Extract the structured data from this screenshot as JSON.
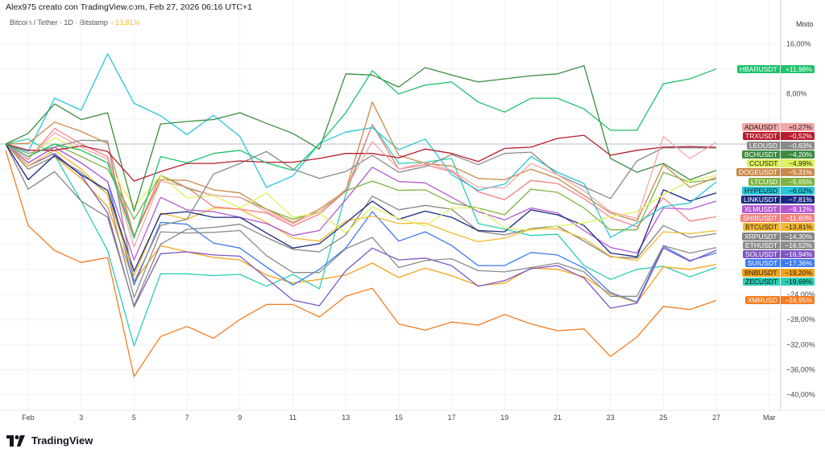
{
  "header": {
    "credit": "Alex975 creato con TradingView.com, Feb 27, 2026 06:16 UTC+1",
    "symbol": "Bitcoin / Tether · 1D · Bitstamp",
    "symbol_change": "−13,81%",
    "scale_mode": "Misto"
  },
  "logo": {
    "text": "TradingView",
    "icon": "tradingview-logo-icon"
  },
  "chart_data": {
    "type": "line",
    "ylabel_unit": "%",
    "ylim": [
      -42,
      19
    ],
    "grid": true,
    "legend": "right-axis-labels",
    "x_tick_labels": [
      "Feb",
      "3",
      "5",
      "7",
      "9",
      "11",
      "13",
      "15",
      "17",
      "19",
      "21",
      "23",
      "25",
      "27",
      "Mar"
    ],
    "y_tick_labels": [
      {
        "value": 16,
        "text": "16,00%"
      },
      {
        "value": 8,
        "text": "8,00%"
      },
      {
        "value": -24,
        "text": "−24,00%"
      },
      {
        "value": -28,
        "text": "−28,00%"
      },
      {
        "value": -32,
        "text": "−32,00%"
      },
      {
        "value": -36,
        "text": "−36,00%"
      },
      {
        "value": -40,
        "text": "−40,00%"
      }
    ],
    "dates": [
      "2026-01-31",
      "2026-02-01",
      "2026-02-02",
      "2026-02-03",
      "2026-02-04",
      "2026-02-05",
      "2026-02-06",
      "2026-02-07",
      "2026-02-08",
      "2026-02-09",
      "2026-02-10",
      "2026-02-11",
      "2026-02-12",
      "2026-02-13",
      "2026-02-14",
      "2026-02-15",
      "2026-02-16",
      "2026-02-17",
      "2026-02-18",
      "2026-02-19",
      "2026-02-20",
      "2026-02-21",
      "2026-02-22",
      "2026-02-23",
      "2026-02-24",
      "2026-02-25",
      "2026-02-26",
      "2026-02-27"
    ],
    "series": [
      {
        "name": "HBARUSDT",
        "last": "+11,98%",
        "color": "#1fc26b",
        "text": "#fff",
        "values": [
          0,
          -2,
          0,
          -1,
          -3,
          -15,
          -2,
          -3,
          -1.5,
          -1,
          -3,
          -4.2,
          0,
          5,
          11.7,
          8,
          9.4,
          9.9,
          6.7,
          5.1,
          7.3,
          7.3,
          5.6,
          2.2,
          2.2,
          9.6,
          10.4,
          11.98
        ]
      },
      {
        "name": "ADAUSDT",
        "last": "+0,27%",
        "color": "#f4a7a7",
        "text": "#222",
        "values": [
          0,
          -2.4,
          1.8,
          -0.5,
          -2.4,
          -16.4,
          -5.9,
          -6.9,
          -8.2,
          -8.5,
          -10.8,
          -12.7,
          -10.8,
          -7.2,
          0.4,
          -4,
          -2.9,
          -4.2,
          -6.9,
          -7,
          -3.1,
          -4.9,
          -7.5,
          -10.8,
          -11.9,
          1.2,
          -2.3,
          0.27
        ]
      },
      {
        "name": "TRXUSDT",
        "last": "−0,52%",
        "color": "#b71c2c",
        "text": "#fff",
        "values": [
          0,
          -1,
          -1,
          -0.3,
          -1.2,
          -5.9,
          -4.4,
          -3.1,
          -3.1,
          -2.7,
          -2.9,
          -2.9,
          -2.3,
          -1.5,
          -1.5,
          -2.2,
          -0.8,
          -1.5,
          -2.8,
          -0.7,
          -0.5,
          0.9,
          1.4,
          -1.8,
          -1,
          -0.5,
          -0.4,
          -0.52
        ]
      },
      {
        "name": "LEOUSD",
        "last": "−0,63%",
        "color": "#8a8a8a",
        "text": "#fff",
        "values": [
          0,
          -1.5,
          -0.5,
          0.6,
          0.5,
          -22,
          -13,
          -12,
          -4.8,
          -3.1,
          -1.2,
          -4,
          -5.5,
          -4.4,
          -1.8,
          -4.5,
          -3.6,
          -1.7,
          -3.3,
          -1.5,
          -1.3,
          -4.9,
          -6.8,
          -8.7,
          -2.7,
          -0.6,
          -0.6,
          -0.63
        ]
      },
      {
        "name": "BCHUSDT",
        "last": "−4,20%",
        "color": "#3d8b40",
        "text": "#fff",
        "values": [
          0,
          1.7,
          6.4,
          3.9,
          5,
          -10.7,
          3.2,
          3.6,
          3.9,
          5,
          3.3,
          1.7,
          -0.8,
          11.2,
          11,
          9.1,
          12.2,
          11,
          9.9,
          10.4,
          10.9,
          11.2,
          12.5,
          -2.3,
          -4.5,
          -3.1,
          -5.7,
          -4.2
        ]
      },
      {
        "name": "CCUSDT",
        "last": "−4,99%",
        "color": "#dff25a",
        "text": "#222",
        "values": [
          0,
          -2,
          1,
          -1,
          -3,
          -10,
          -5,
          -8.6,
          -8.2,
          -10.2,
          -7.8,
          -11.7,
          -11,
          -14.2,
          -10,
          -11.9,
          -13.1,
          -10.2,
          -10.2,
          -13.4,
          -13.8,
          -13.1,
          -12.6,
          -11.6,
          -10.8,
          -8.1,
          -5.9,
          -4.99
        ]
      },
      {
        "name": "DOGEUSDT",
        "last": "−5,31%",
        "color": "#c98a4b",
        "text": "#fff",
        "values": [
          0,
          0.1,
          3.5,
          2,
          0.1,
          -14.7,
          -5.7,
          -5.8,
          -7.3,
          -7.8,
          -10.4,
          -12.5,
          -10.4,
          -7.4,
          6.7,
          -1.8,
          -3.1,
          -3.5,
          -5.5,
          -5.7,
          -4,
          -5.5,
          -8.2,
          -11,
          -12.3,
          -3.3,
          -6.9,
          -5.31
        ]
      },
      {
        "name": "LTCUSD",
        "last": "−5,65%",
        "color": "#7cb342",
        "text": "#fff",
        "values": [
          0,
          -2,
          0,
          -2,
          -4,
          -12,
          -5,
          -7.1,
          -8.2,
          -8.5,
          -10.4,
          -12,
          -10.8,
          -7.5,
          -5.9,
          -7.4,
          -7.3,
          -9.4,
          -10.2,
          -11.3,
          -7.2,
          -7.7,
          -10.2,
          -13.7,
          -13.7,
          -4.5,
          -6.1,
          -5.65
        ]
      },
      {
        "name": "HYPEUSD",
        "last": "−6,02%",
        "color": "#26c6da",
        "text": "#111",
        "values": [
          0,
          -1.2,
          7.3,
          5.4,
          14.4,
          6.5,
          4.5,
          1.5,
          4.6,
          1.2,
          -6.9,
          -5.1,
          0.1,
          1.9,
          2.6,
          -0.9,
          0.8,
          -4.9,
          -7.4,
          -6.4,
          -2,
          -4.5,
          -6.3,
          -14.9,
          -12.6,
          -10,
          -9.4,
          -6.02
        ]
      },
      {
        "name": "LINKUSDT",
        "last": "−7,81%",
        "color": "#1a2a80",
        "text": "#fff",
        "values": [
          0,
          -5.7,
          -1.8,
          -4.9,
          -7.4,
          -20.3,
          -11.2,
          -10.8,
          -11.7,
          -11.7,
          -14.2,
          -16.6,
          -15.9,
          -12.6,
          -9.1,
          -12,
          -10.7,
          -11.7,
          -13.8,
          -14,
          -10.5,
          -11.3,
          -13,
          -17.4,
          -18,
          -7.3,
          -9.1,
          -7.81
        ]
      },
      {
        "name": "XLMUSDT",
        "last": "−9,12%",
        "color": "#b45ad0",
        "text": "#fff",
        "values": [
          0,
          -3,
          -0.5,
          -3,
          -6,
          -18.5,
          -8.5,
          -10.5,
          -10.8,
          -11.7,
          -12.7,
          -14.6,
          -13.8,
          -8.9,
          -3.7,
          -6,
          -6.2,
          -8.5,
          -10.8,
          -12.1,
          -10.2,
          -11,
          -13.8,
          -16.5,
          -17.4,
          -10.2,
          -10.4,
          -9.12
        ]
      },
      {
        "name": "SHIBUSDT",
        "last": "−11,60%",
        "color": "#f28080",
        "text": "#fff",
        "values": [
          0,
          -2.5,
          2.5,
          0,
          -2,
          -14.7,
          -5,
          -6.9,
          -10,
          -10.4,
          -11,
          -13.1,
          -11.2,
          -7.5,
          3.1,
          -4,
          -3.3,
          -4.4,
          -7.6,
          -8.9,
          -5.8,
          -6.3,
          -8.7,
          -11.7,
          -13.2,
          -8.6,
          -12.3,
          -11.6
        ]
      },
      {
        "name": "BTCUSDT",
        "last": "−13,81%",
        "color": "#f5b82e",
        "text": "#222",
        "values": [
          0,
          -3.5,
          -1,
          -4,
          -8,
          -21,
          -11,
          -12,
          -10.2,
          -10.4,
          -12.5,
          -15,
          -15.5,
          -12.3,
          -11.5,
          -12.7,
          -12.6,
          -14.2,
          -15.6,
          -15,
          -13.6,
          -13.5,
          -15.1,
          -17.9,
          -18.6,
          -14,
          -14.3,
          -13.81
        ]
      },
      {
        "name": "XRPUSDT",
        "last": "−14,30%",
        "color": "#858585",
        "text": "#fff",
        "values": [
          0,
          -7.2,
          -4.4,
          -9.1,
          -11.7,
          -25.8,
          -16,
          -13.6,
          -13.3,
          -12.8,
          -14.9,
          -16.8,
          -17.2,
          -14.5,
          -8.3,
          -10.5,
          -9.8,
          -10.4,
          -13.9,
          -14.5,
          -13.5,
          -13.1,
          -15.5,
          -18,
          -18.2,
          -13,
          -14.9,
          -14.3
        ]
      },
      {
        "name": "ETHUSDT",
        "last": "−16,52%",
        "color": "#8c8c8c",
        "text": "#fff",
        "values": [
          0,
          -4,
          -2,
          -4.5,
          -8,
          -24.5,
          -14,
          -14.2,
          -14.1,
          -13.8,
          -17.8,
          -20.5,
          -20.5,
          -16.7,
          -14.9,
          -19.7,
          -18.6,
          -18.3,
          -20.2,
          -20.4,
          -19.7,
          -19,
          -20.4,
          -24.3,
          -24.3,
          -16.2,
          -17.4,
          -16.52
        ]
      },
      {
        "name": "SOLUSDT",
        "last": "−16,94%",
        "color": "#7e57c2",
        "text": "#fff",
        "values": [
          0,
          -3.5,
          -1.5,
          -5,
          -11,
          -26,
          -17.5,
          -17.2,
          -17.7,
          -17.9,
          -21.4,
          -24.9,
          -25.8,
          -20.2,
          -16.6,
          -18.5,
          -18.2,
          -19.4,
          -22.7,
          -21.8,
          -19.9,
          -19.4,
          -21.4,
          -26.2,
          -25.4,
          -16.6,
          -18.7,
          -16.94
        ]
      },
      {
        "name": "SUIUSDT",
        "last": "−17,36%",
        "color": "#3d7bf0",
        "text": "#fff",
        "values": [
          0,
          -3,
          -0.5,
          -3,
          -6,
          -22.5,
          -12.5,
          -12.8,
          -15.8,
          -16.6,
          -19.6,
          -22.5,
          -20,
          -16.6,
          -10.8,
          -15.5,
          -14,
          -16.2,
          -19.4,
          -19.4,
          -17.3,
          -17.7,
          -19.8,
          -23.7,
          -25.2,
          -16.3,
          -18.6,
          -17.36
        ]
      },
      {
        "name": "BNBUSDT",
        "last": "−19,20%",
        "color": "#f5a21b",
        "text": "#222",
        "values": [
          0,
          -4,
          -2,
          -5.5,
          -10,
          -22,
          -16.2,
          -17.2,
          -18.1,
          -18.5,
          -20.9,
          -22.2,
          -21.6,
          -20.9,
          -19,
          -21.3,
          -19.8,
          -21,
          -22.6,
          -22.2,
          -19.8,
          -20,
          -21.2,
          -23.9,
          -25.3,
          -19.6,
          -20,
          -19.2
        ]
      },
      {
        "name": "ZECUSDT",
        "last": "−19,69%",
        "color": "#2bcfb5",
        "text": "#111",
        "values": [
          0,
          0.8,
          -1.8,
          -9.1,
          -17,
          -32.2,
          -20.7,
          -20.7,
          -21,
          -20.8,
          -22.7,
          -20.8,
          -23.1,
          -8,
          3.1,
          -3.1,
          -2.9,
          -2.3,
          -12.7,
          -13.6,
          -14.6,
          -14.4,
          -19.4,
          -21.6,
          -20,
          -19.5,
          -21.2,
          -19.69
        ]
      },
      {
        "name": "XMRUSD",
        "last": "−24,95%",
        "color": "#f57c20",
        "text": "#fff",
        "values": [
          -1,
          -13,
          -17,
          -18.9,
          -18.1,
          -37.1,
          -30.7,
          -29.1,
          -31,
          -28,
          -25.6,
          -25.6,
          -27.6,
          -24.3,
          -23,
          -28.7,
          -29.7,
          -28.4,
          -28.9,
          -27.2,
          -28.7,
          -29.8,
          -29.5,
          -33.9,
          -30.8,
          -25.9,
          -26.4,
          -24.95
        ]
      }
    ]
  }
}
